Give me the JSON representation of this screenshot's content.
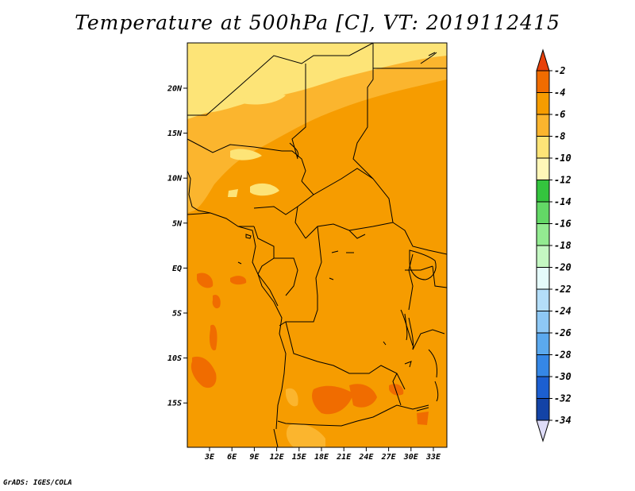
{
  "title": "Temperature at 500hPa [C], VT: 2019112415",
  "footer": "GrADS: IGES/COLA",
  "map": {
    "lat_ticks": [
      "20N",
      "15N",
      "10N",
      "5N",
      "EQ",
      "5S",
      "10S",
      "15S"
    ],
    "lon_ticks": [
      "3E",
      "6E",
      "9E",
      "12E",
      "15E",
      "18E",
      "21E",
      "24E",
      "27E",
      "30E",
      "33E"
    ]
  },
  "colorbar": {
    "labels": [
      "-2",
      "-4",
      "-6",
      "-8",
      "-10",
      "-12",
      "-14",
      "-16",
      "-18",
      "-20",
      "-22",
      "-24",
      "-26",
      "-28",
      "-30",
      "-32",
      "-34"
    ],
    "colors": [
      "#e8410a",
      "#f06c00",
      "#f69c00",
      "#fbb52e",
      "#fde477",
      "#fff7b8",
      "#34c43e",
      "#63d866",
      "#93eb91",
      "#c4f7c2",
      "#e5fbfb",
      "#b4def9",
      "#8ec8f5",
      "#5ba9ee",
      "#3587e6",
      "#1c5fd1",
      "#1343a6",
      "#0b1d7a",
      "#dedcf8"
    ]
  }
}
